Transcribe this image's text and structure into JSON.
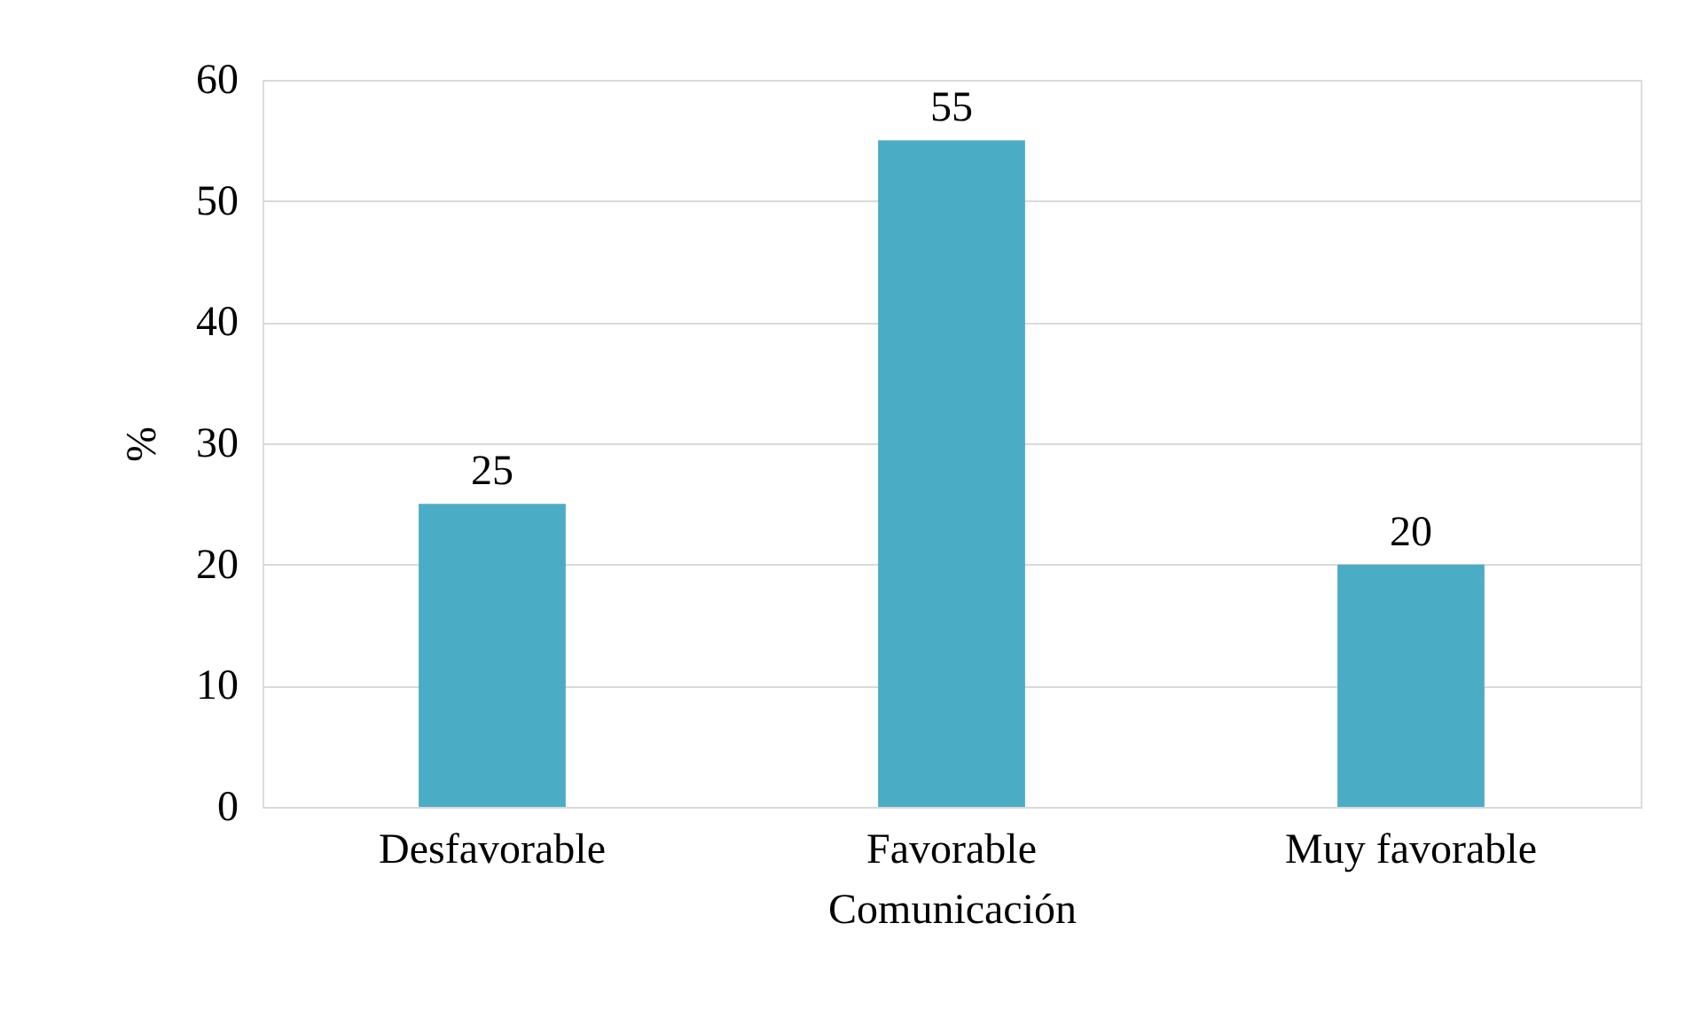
{
  "chart_data": {
    "type": "bar",
    "xlabel": "Comunicación",
    "ylabel": "%",
    "categories": [
      "Desfavorable",
      "Favorable",
      "Muy favorable"
    ],
    "values": [
      25,
      55,
      20
    ],
    "color": "#4bacc6",
    "ylim": [
      0,
      60
    ],
    "yticks": [
      0,
      10,
      20,
      30,
      40,
      50,
      60
    ],
    "grid": "y",
    "data_labels": true
  }
}
